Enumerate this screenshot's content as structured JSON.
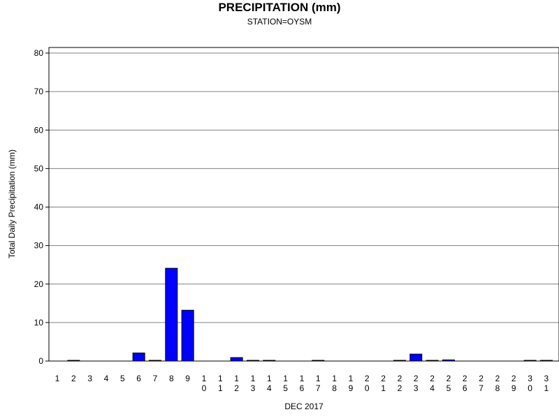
{
  "chart_data": {
    "type": "bar",
    "title": "PRECIPITATION (mm)",
    "subtitle": "STATION=OYSM",
    "xlabel": "DEC 2017",
    "ylabel": "Total Daily Precipitation (mm)",
    "ylim": [
      0,
      80
    ],
    "yticks": [
      0,
      10,
      20,
      30,
      40,
      50,
      60,
      70,
      80
    ],
    "grid": true,
    "bar_color": "#0000ff",
    "categories": [
      "1",
      "2",
      "3",
      "4",
      "5",
      "6",
      "7",
      "8",
      "9",
      "10",
      "11",
      "12",
      "13",
      "14",
      "15",
      "16",
      "17",
      "18",
      "19",
      "20",
      "21",
      "22",
      "23",
      "24",
      "25",
      "26",
      "27",
      "28",
      "29",
      "30",
      "31"
    ],
    "values": [
      null,
      0.1,
      null,
      null,
      null,
      2.1,
      0.1,
      24.1,
      13.2,
      null,
      null,
      0.9,
      0.1,
      0.1,
      null,
      null,
      0.1,
      null,
      null,
      null,
      null,
      0.1,
      1.8,
      0.1,
      0.3,
      null,
      null,
      null,
      null,
      0.1,
      0.1
    ]
  }
}
